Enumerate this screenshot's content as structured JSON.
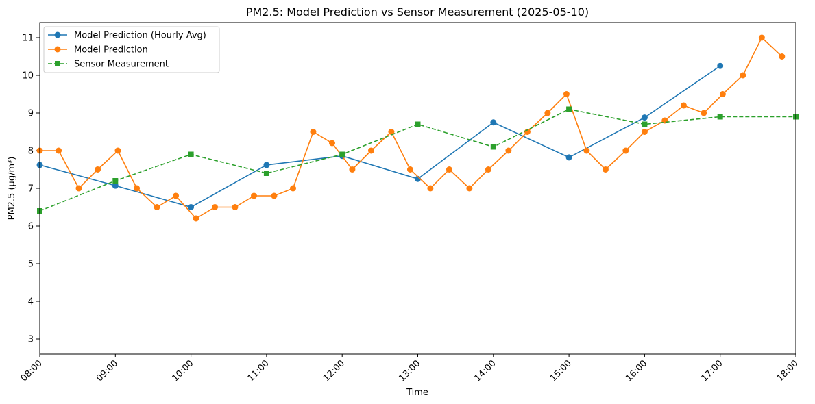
{
  "chart_data": {
    "type": "line",
    "title": "PM2.5: Model Prediction vs Sensor Measurement (2025-05-10)",
    "xlabel": "Time",
    "ylabel": "PM2.5 (µg/m³)",
    "xlim": [
      "08:00",
      "18:00"
    ],
    "ylim": [
      2.6,
      11.4
    ],
    "x_ticks": [
      "08:00",
      "09:00",
      "10:00",
      "11:00",
      "12:00",
      "13:00",
      "14:00",
      "15:00",
      "16:00",
      "17:00",
      "18:00"
    ],
    "y_ticks": [
      3,
      4,
      5,
      6,
      7,
      8,
      9,
      10,
      11
    ],
    "x_tick_rotation": 45,
    "grid": false,
    "legend_position": "top-left",
    "series": [
      {
        "name": "Model Prediction (Hourly Avg)",
        "color": "#1f77b4",
        "line_style": "solid",
        "marker": "circle",
        "x": [
          "08:00",
          "09:00",
          "10:00",
          "11:00",
          "12:00",
          "13:00",
          "14:00",
          "15:00",
          "16:00",
          "17:00"
        ],
        "y": [
          7.62,
          7.07,
          6.5,
          7.62,
          7.86,
          7.25,
          8.75,
          7.82,
          8.88,
          10.25
        ]
      },
      {
        "name": "Model Prediction",
        "color": "#ff7f0e",
        "line_style": "solid",
        "marker": "circle",
        "x": [
          "08:00",
          "08:15",
          "08:31",
          "08:46",
          "09:02",
          "09:17",
          "09:33",
          "09:48",
          "10:04",
          "10:19",
          "10:35",
          "10:50",
          "11:06",
          "11:21",
          "11:37",
          "11:52",
          "12:08",
          "12:23",
          "12:39",
          "12:54",
          "13:10",
          "13:25",
          "13:41",
          "13:56",
          "14:12",
          "14:27",
          "14:43",
          "14:58",
          "15:14",
          "15:29",
          "15:45",
          "16:00",
          "16:16",
          "16:31",
          "16:47",
          "17:02",
          "17:18",
          "17:33",
          "17:49"
        ],
        "y": [
          8.0,
          8.0,
          7.0,
          7.5,
          8.0,
          7.0,
          6.5,
          6.8,
          6.2,
          6.5,
          6.5,
          6.8,
          6.8,
          7.0,
          8.5,
          8.2,
          7.5,
          8.0,
          8.5,
          7.5,
          7.0,
          7.5,
          7.0,
          7.5,
          8.0,
          8.5,
          9.0,
          9.5,
          8.0,
          7.5,
          8.0,
          8.5,
          8.8,
          9.2,
          9.0,
          9.5,
          10.0,
          11.0,
          10.5
        ]
      },
      {
        "name": "Sensor Measurement",
        "color": "#2ca02c",
        "line_style": "dashed",
        "marker": "square",
        "x": [
          "08:00",
          "09:00",
          "10:00",
          "11:00",
          "12:00",
          "13:00",
          "14:00",
          "15:00",
          "16:00",
          "17:00",
          "18:00"
        ],
        "y": [
          6.4,
          7.2,
          7.9,
          7.4,
          7.9,
          8.7,
          8.1,
          9.1,
          8.7,
          8.9,
          8.9
        ]
      }
    ]
  }
}
